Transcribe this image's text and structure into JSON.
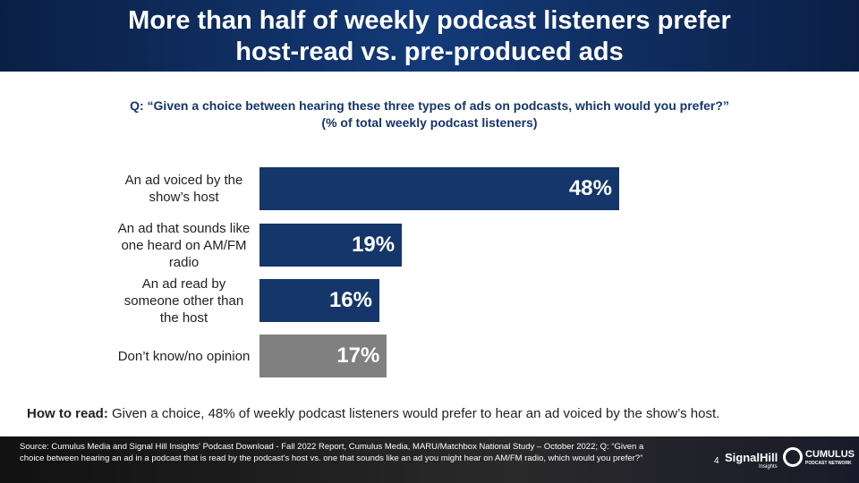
{
  "chart_data": {
    "type": "hbar",
    "title": "More than half of weekly podcast listeners prefer host-read vs. pre-produced ads",
    "question": "Q: “Given a choice between hearing these three types of ads on podcasts, which would you prefer?”",
    "subtitle": "(% of total weekly podcast listeners)",
    "categories": [
      "An ad voiced by the show’s host",
      "An ad that sounds like one heard on AM/FM radio",
      "An ad read by someone other than the host",
      "Don’t know/no opinion"
    ],
    "values": [
      48,
      19,
      16,
      17
    ],
    "value_labels": [
      "48%",
      "19%",
      "16%",
      "17%"
    ],
    "colors": [
      "#14366a",
      "#14366a",
      "#14366a",
      "#808080"
    ]
  },
  "how_to_read": {
    "label": "How to read:",
    "text": "Given a choice, 48% of weekly podcast listeners would prefer to hear an ad voiced by the show’s host."
  },
  "footer": {
    "source": "Source: Cumulus Media and Signal Hill Insights' Podcast Download - Fall 2022 Report, Cumulus Media, MARU/Matchbox National Study – October 2022; Q: “Given a choice between hearing an ad in a podcast that is read by the podcast's host vs. one that sounds like an ad you might hear on AM/FM radio, which would you prefer?”",
    "page": "4",
    "logo1": "SignalHill",
    "logo1_sub": "Insights",
    "logo2": "CUMULUS",
    "logo2_sub": "PODCAST NETWORK"
  }
}
